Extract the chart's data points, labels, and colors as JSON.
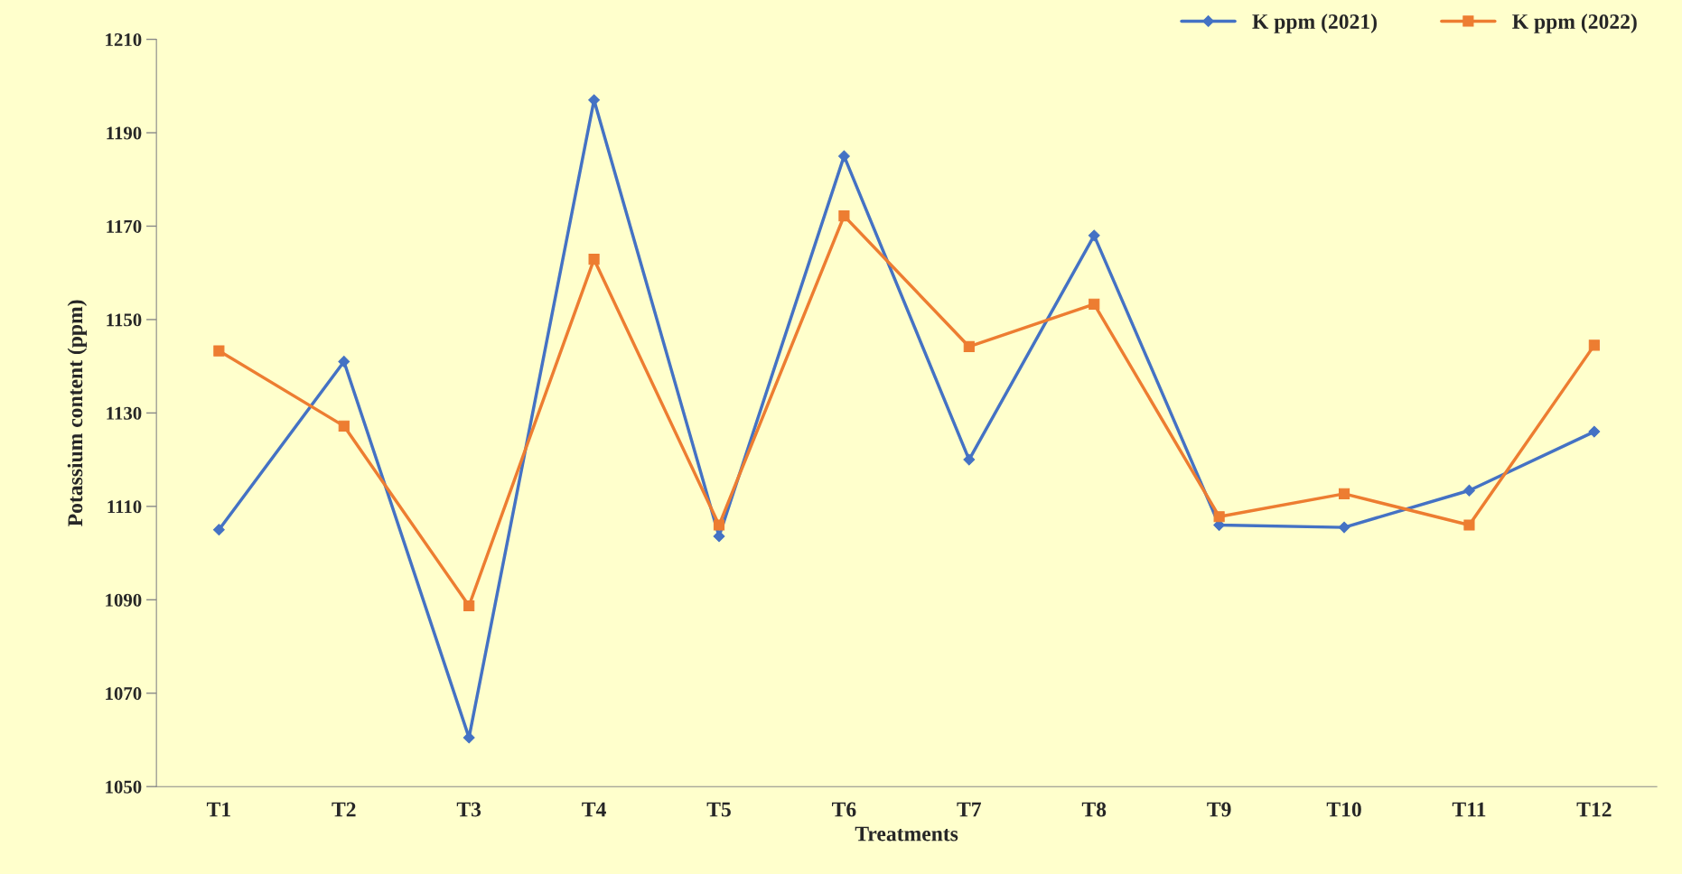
{
  "chart_data": {
    "type": "line",
    "xlabel": "Treatments",
    "ylabel": "Potassium content (ppm)",
    "categories": [
      "T1",
      "T2",
      "T3",
      "T4",
      "T5",
      "T6",
      "T7",
      "T8",
      "T9",
      "T10",
      "T11",
      "T12"
    ],
    "series": [
      {
        "name": "K ppm (2021)",
        "color": "#4472c4",
        "marker": "diamond",
        "values": [
          1105,
          1141,
          1060.5,
          1197,
          1103.6,
          1185,
          1120,
          1168,
          1106,
          1105.5,
          1113.4,
          1126
        ]
      },
      {
        "name": "K ppm (2022)",
        "color": "#ed7d31",
        "marker": "square",
        "values": [
          1143.3,
          1127.2,
          1088.7,
          1162.9,
          1106,
          1172.2,
          1144.2,
          1153.3,
          1107.8,
          1112.7,
          1106,
          1144.5
        ]
      }
    ],
    "ylim": [
      1050,
      1210
    ],
    "yticks": [
      1050,
      1070,
      1090,
      1110,
      1130,
      1150,
      1170,
      1190,
      1210
    ],
    "grid": false,
    "legend": "top right",
    "line_style": "solid"
  }
}
